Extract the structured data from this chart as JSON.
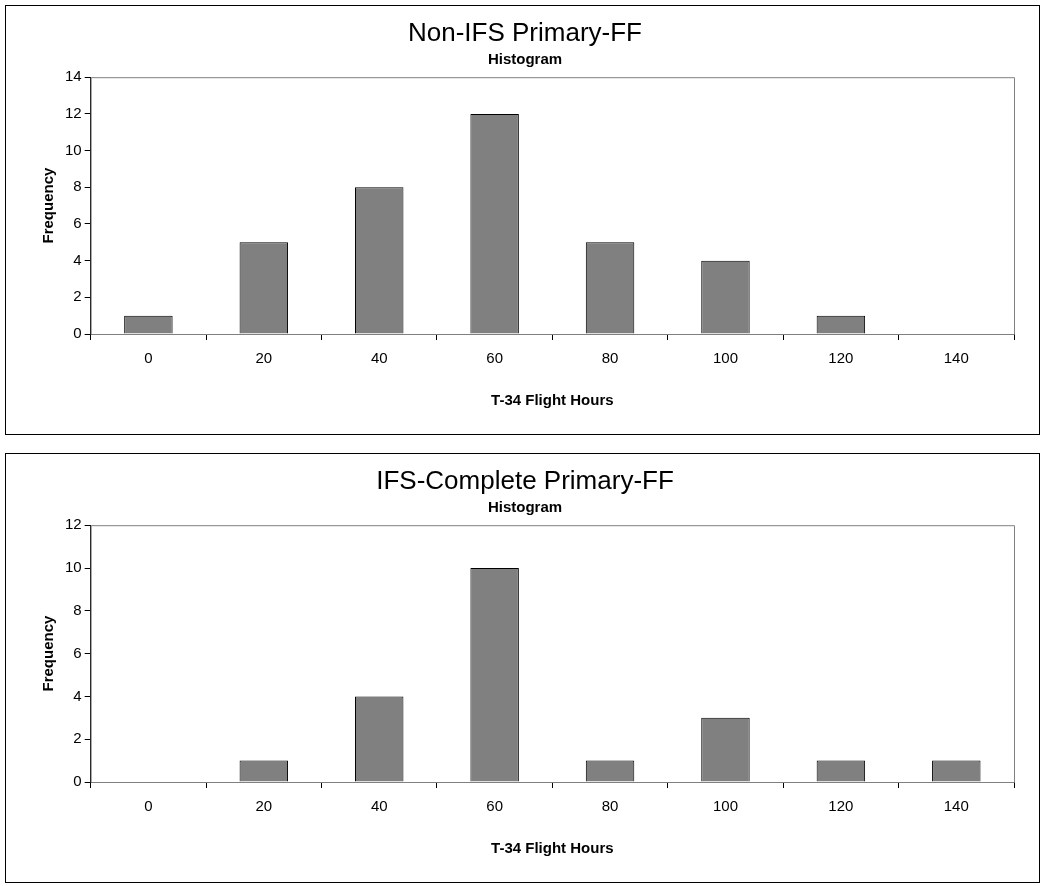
{
  "chart_data": [
    {
      "type": "bar",
      "title": "Non-IFS Primary-FF",
      "subtitle": "Histogram",
      "xlabel": "T-34 Flight Hours",
      "ylabel": "Frequency",
      "categories": [
        "0",
        "20",
        "40",
        "60",
        "80",
        "100",
        "120",
        "140"
      ],
      "values": [
        1,
        5,
        8,
        12,
        5,
        4,
        1,
        0
      ],
      "color": "#808080",
      "ylim": [
        0,
        14
      ],
      "yticks": [
        0,
        2,
        4,
        6,
        8,
        10,
        12,
        14
      ]
    },
    {
      "type": "bar",
      "title": "IFS-Complete Primary-FF",
      "subtitle": "Histogram",
      "xlabel": "T-34 Flight Hours",
      "ylabel": "Frequency",
      "categories": [
        "0",
        "20",
        "40",
        "60",
        "80",
        "100",
        "120",
        "140"
      ],
      "values": [
        0,
        1,
        4,
        10,
        1,
        3,
        1,
        1
      ],
      "color": "#808080",
      "ylim": [
        0,
        12
      ],
      "yticks": [
        0,
        2,
        4,
        6,
        8,
        10,
        12
      ]
    }
  ]
}
